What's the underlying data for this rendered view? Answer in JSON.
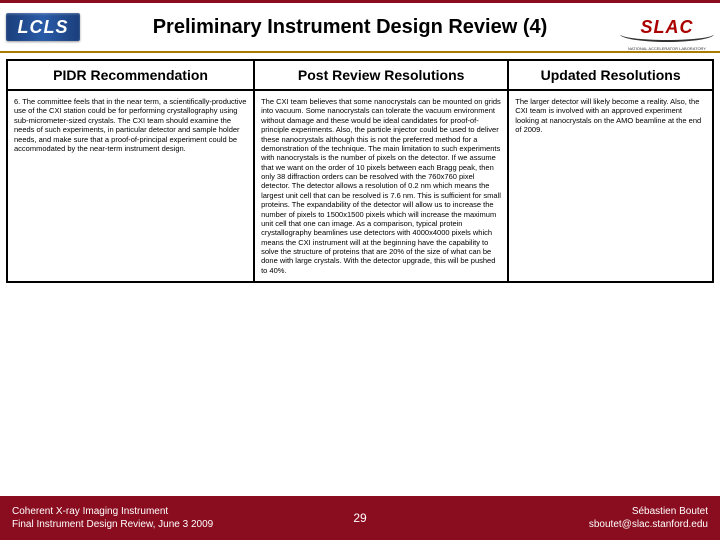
{
  "logos": {
    "lcls_text": "LCLS",
    "slac_text": "SLAC",
    "slac_sub": "NATIONAL ACCELERATOR LABORATORY"
  },
  "title": "Preliminary Instrument Design Review (4)",
  "columns": {
    "c1": "PIDR Recommendation",
    "c2": "Post Review Resolutions",
    "c3": "Updated Resolutions"
  },
  "row": {
    "c1": "6. The committee feels that in the near term, a scientifically-productive use of the CXI station could be for performing crystallography using sub-micrometer-sized crystals. The CXI team should examine the needs of such experiments, in particular detector and sample holder needs, and make sure that a proof-of-principal experiment could be accommodated by the near-term instrument design.",
    "c2": "The CXI team believes that some nanocrystals can be mounted on grids into vacuum. Some nanocrystals can tolerate the vacuum environment without damage and these would be ideal candidates for proof-of-principle experiments. Also, the particle injector could be used to deliver these nanocrystals although this is not the preferred method for a demonstration of the technique. The main limitation to such experiments with nanocrystals is the number of pixels on the detector. If we assume that we want on the order of 10 pixels between each Bragg peak, then only 38 diffraction orders can be resolved with the 760x760 pixel detector. The detector allows a resolution of 0.2 nm which means the largest unit cell that can be resolved is 7.6 nm. This is sufficient for small proteins. The expandability of the detector will allow us to increase the number of pixels to 1500x1500 pixels which will increase the maximum unit cell that one can image. As a comparison, typical protein crystallography beamlines use detectors with 4000x4000 pixels which means the CXI instrument will at the beginning have the capability to solve the structure of proteins that are 20% of the size of what can be done with large crystals. With the detector upgrade, this will be pushed to 40%.",
    "c3": "The larger detector will likely become a reality. Also, the CXI team is involved with an approved experiment looking at nanocrystals on the AMO beamline at the end of 2009."
  },
  "footer": {
    "left_line1": "Coherent X-ray Imaging Instrument",
    "left_line2": "Final Instrument Design Review, June 3 2009",
    "page": "29",
    "right_line1": "Sébastien Boutet",
    "right_line2": "sboutet@slac.stanford.edu"
  },
  "colors": {
    "maroon": "#8a0d1f",
    "gold": "#aa7b00"
  }
}
